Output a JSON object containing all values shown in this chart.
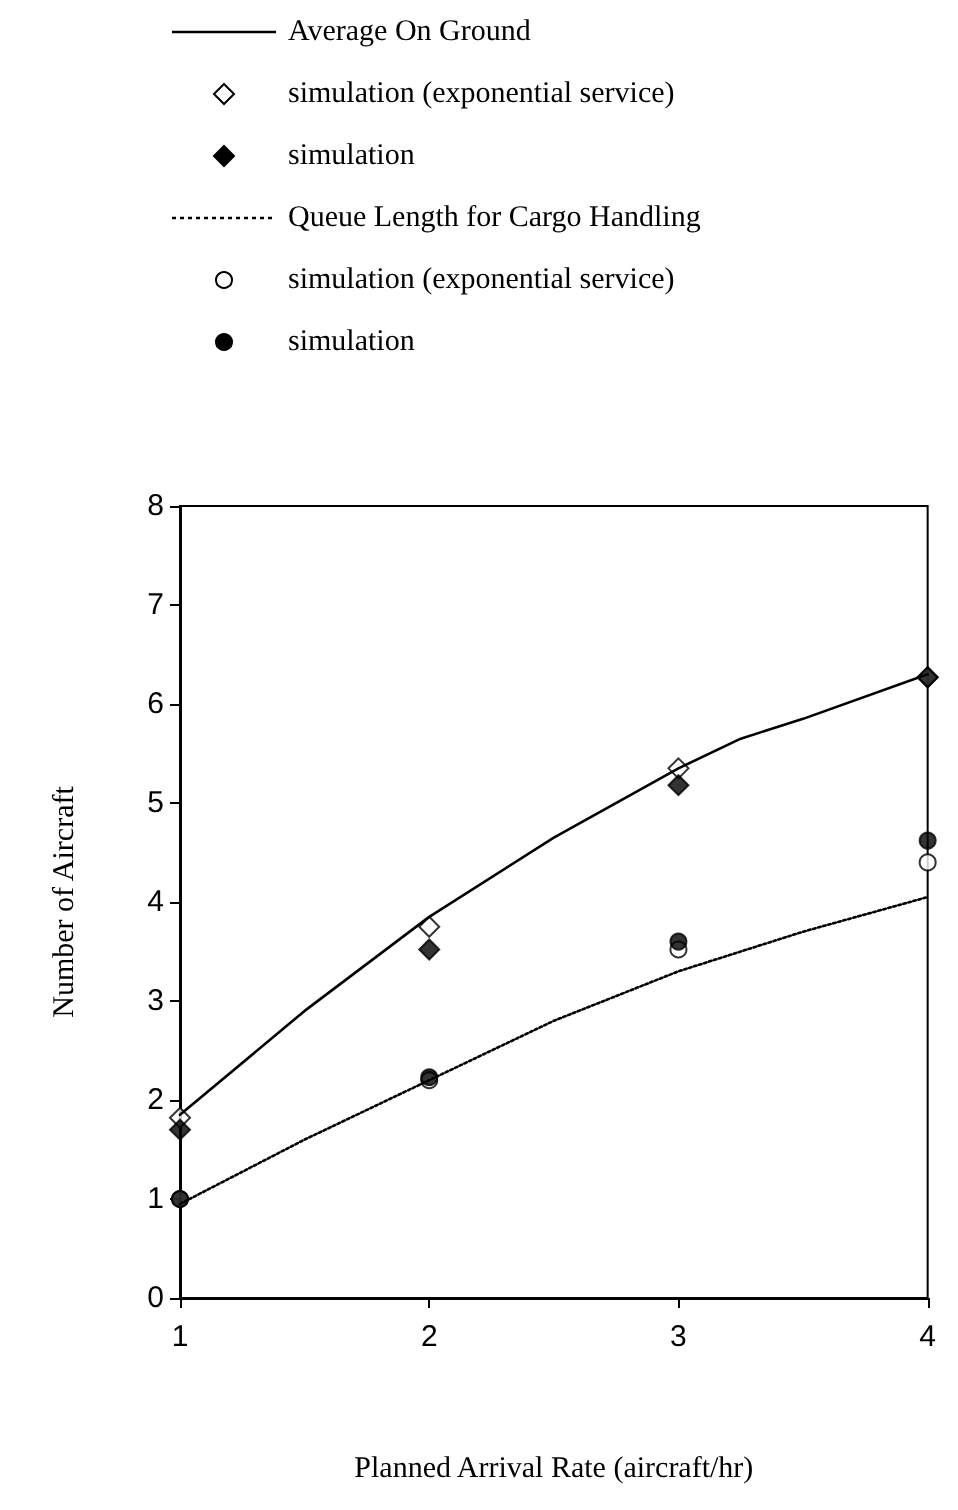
{
  "chart_data": {
    "type": "line",
    "xlabel": "Planned Arrival Rate (aircraft/hr)",
    "ylabel": "Number of Aircraft",
    "xlim": [
      1,
      4
    ],
    "xticks": [
      1,
      2,
      3,
      4
    ],
    "ylim": [
      0,
      8
    ],
    "yticks": [
      0,
      1,
      2,
      3,
      4,
      5,
      6,
      7,
      8
    ],
    "grid": false,
    "legend": "top",
    "series": [
      {
        "name": "Average On Ground",
        "color": "#000000",
        "line_style": "solid",
        "marker": "none",
        "x": [
          1,
          1.5,
          2,
          2.5,
          3,
          3.25,
          3.5,
          4
        ],
        "values": [
          1.85,
          2.9,
          3.85,
          4.65,
          5.35,
          5.65,
          5.85,
          6.3
        ]
      },
      {
        "name": "simulation (exponential service)",
        "type": "scatter",
        "color": "#ffffff",
        "marker": "diamond",
        "x": [
          1,
          2,
          3,
          4
        ],
        "values": [
          1.82,
          3.75,
          5.35,
          6.27
        ]
      },
      {
        "name": "simulation",
        "type": "scatter",
        "color": "#000000",
        "marker": "diamond",
        "x": [
          1,
          2,
          3,
          4
        ],
        "values": [
          1.7,
          3.52,
          5.18,
          6.27
        ]
      },
      {
        "name": "Queue Length for Cargo Handling",
        "color": "#000000",
        "line_style": "dotted",
        "marker": "none",
        "x": [
          1,
          1.5,
          2,
          2.5,
          3,
          3.5,
          4
        ],
        "values": [
          0.95,
          1.6,
          2.2,
          2.8,
          3.3,
          3.7,
          4.05
        ]
      },
      {
        "name": "simulation (exponential service)",
        "type": "scatter",
        "color": "#ffffff",
        "marker": "circle",
        "x": [
          1,
          2,
          3,
          4
        ],
        "values": [
          1.0,
          2.2,
          3.52,
          4.4
        ]
      },
      {
        "name": "simulation",
        "type": "scatter",
        "color": "#000000",
        "marker": "circle",
        "x": [
          1,
          2,
          3,
          4
        ],
        "values": [
          1.0,
          2.23,
          3.6,
          4.62
        ]
      }
    ]
  }
}
